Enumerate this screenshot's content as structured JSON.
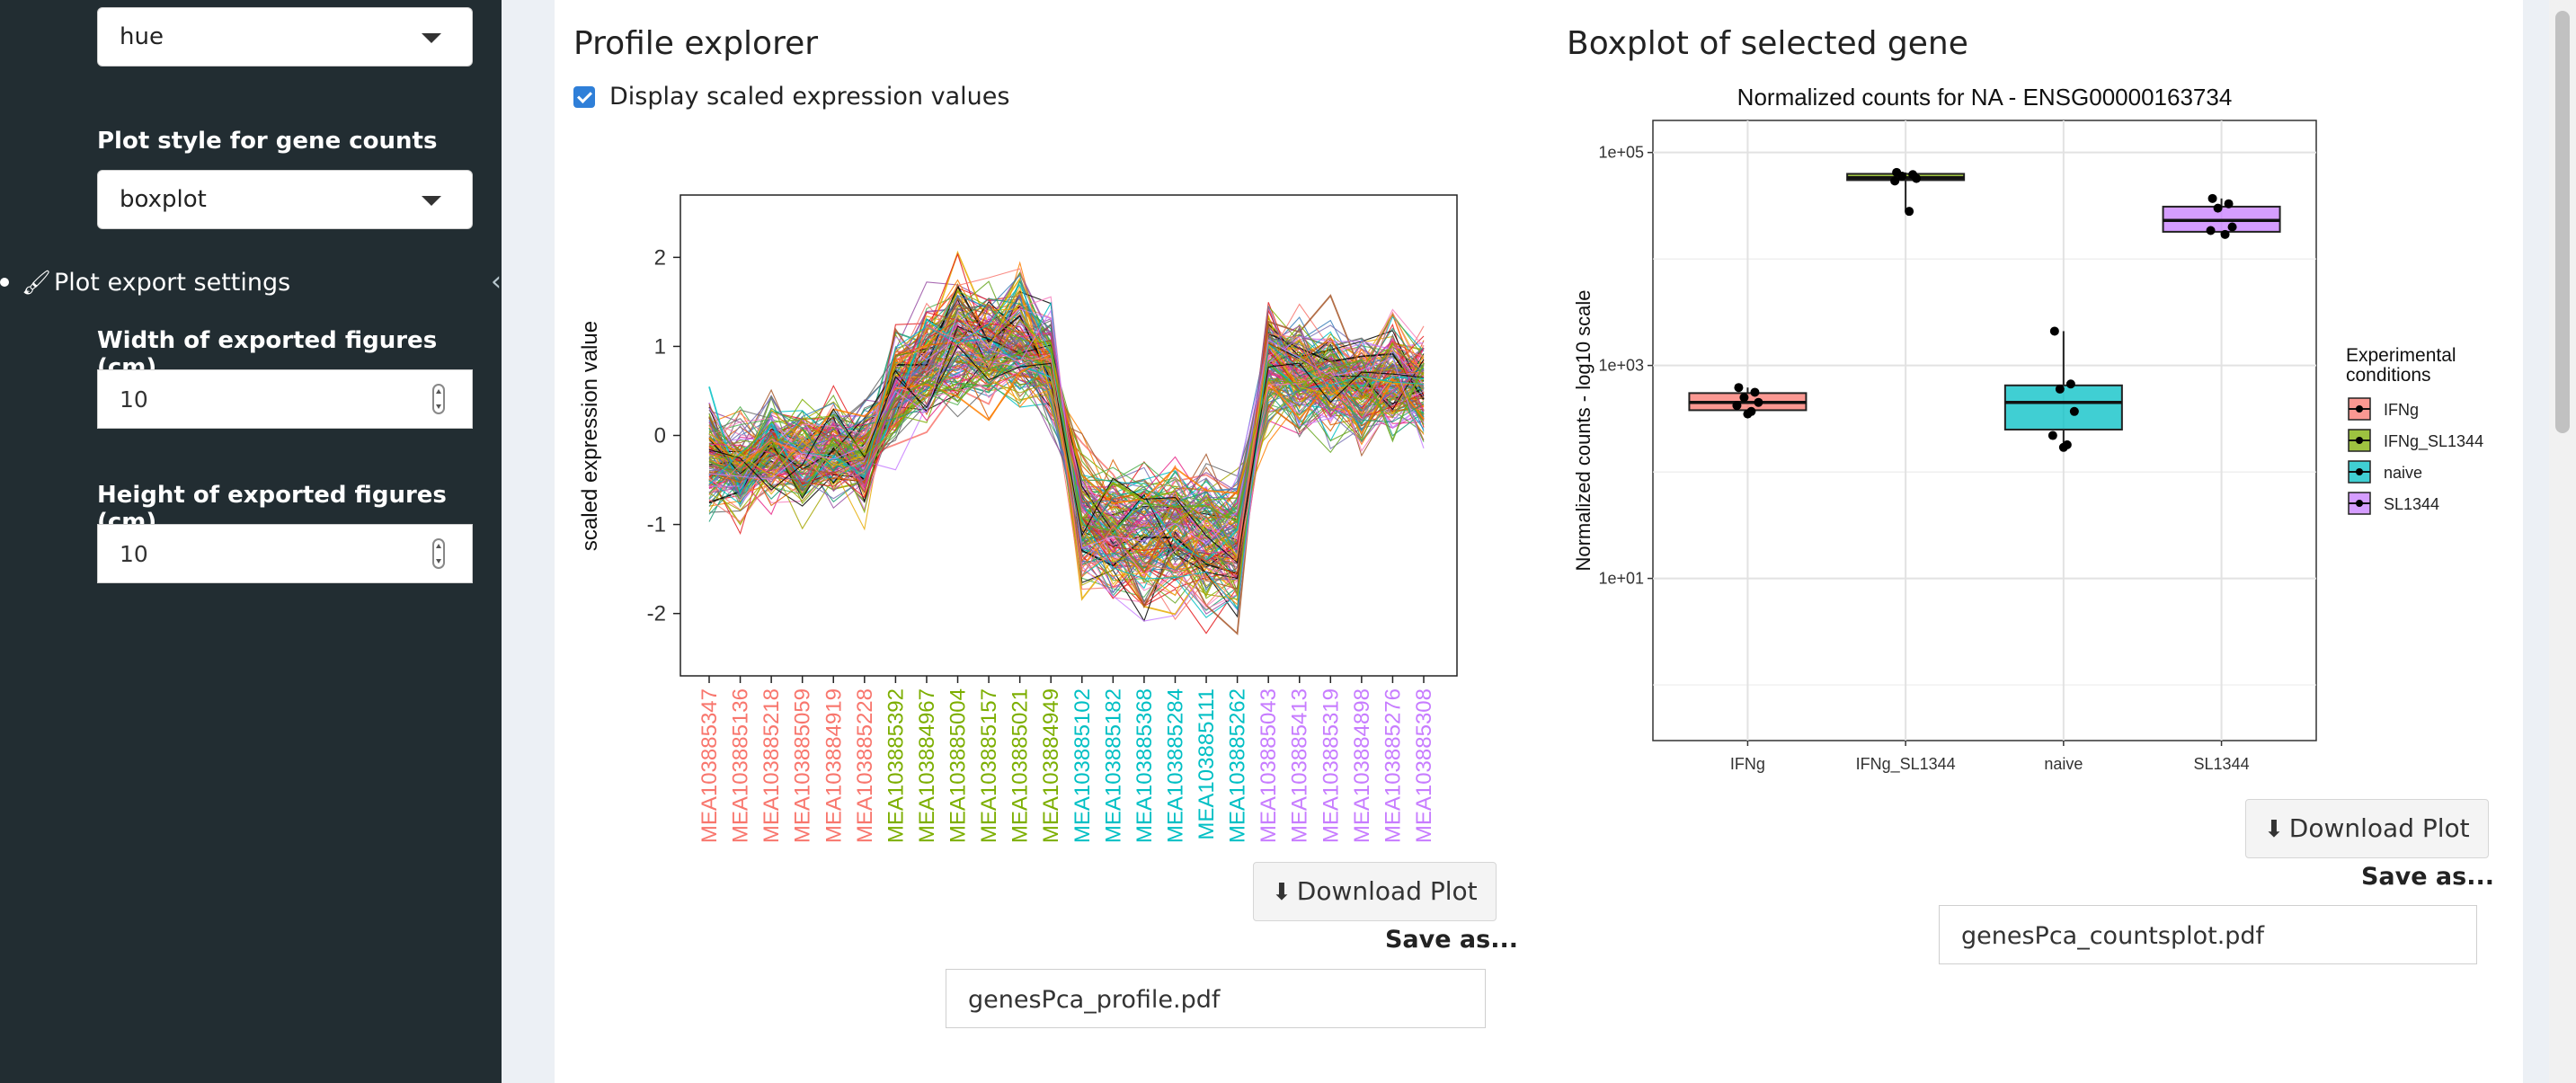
{
  "sidebar": {
    "color_select_value": "hue",
    "plot_style_label": "Plot style for gene counts",
    "plot_style_value": "boxplot",
    "export_section_title": "Plot export settings",
    "width_label": "Width of exported figures (cm)",
    "width_value": "10",
    "height_label": "Height of exported figures (cm)",
    "height_value": "10"
  },
  "profile": {
    "title": "Profile explorer",
    "checkbox_label": "Display scaled expression values",
    "checkbox_checked": true,
    "download_label": "Download Plot",
    "save_as_label": "Save as...",
    "filename": "genesPca_profile.pdf"
  },
  "boxplot": {
    "title": "Boxplot of selected gene",
    "download_label": "Download Plot",
    "save_as_label": "Save as...",
    "filename": "genesPca_countsplot.pdf"
  },
  "colors": {
    "IFNg": "#f8766d",
    "IFNg_SL1344": "#7cae00",
    "naive": "#00bfc4",
    "SL1344": "#c77cff",
    "checkbox": "#2f7fd8",
    "sidebar": "#222d32"
  },
  "chart_data": [
    {
      "type": "line",
      "title": "",
      "xlabel": "",
      "ylabel": "scaled expression value",
      "ylim": [
        -2.7,
        2.7
      ],
      "yticks": [
        -2,
        -1,
        0,
        1,
        2
      ],
      "grid": false,
      "legend": "none",
      "categories": [
        "MEA103885347",
        "MEA103885136",
        "MEA103885218",
        "MEA103885059",
        "MEA103884919",
        "MEA103885228",
        "MEA103885392",
        "MEA103884967",
        "MEA103885004",
        "MEA103885157",
        "MEA103885021",
        "MEA103884949",
        "MEA103885102",
        "MEA103885182",
        "MEA103885368",
        "MEA103885284",
        "MEA103885111",
        "MEA103885262",
        "MEA103885043",
        "MEA103885413",
        "MEA103885319",
        "MEA103884898",
        "MEA103885276",
        "MEA103885308"
      ],
      "category_groups": [
        "IFNg",
        "IFNg",
        "IFNg",
        "IFNg",
        "IFNg",
        "IFNg",
        "IFNg_SL1344",
        "IFNg_SL1344",
        "IFNg_SL1344",
        "IFNg_SL1344",
        "IFNg_SL1344",
        "IFNg_SL1344",
        "naive",
        "naive",
        "naive",
        "naive",
        "naive",
        "naive",
        "SL1344",
        "SL1344",
        "SL1344",
        "SL1344",
        "SL1344",
        "SL1344"
      ],
      "profile_mean": [
        -0.3,
        -0.4,
        -0.2,
        -0.3,
        -0.2,
        -0.3,
        0.6,
        0.9,
        1.2,
        1.1,
        1.2,
        0.9,
        -1.1,
        -1.2,
        -1.3,
        -1.2,
        -1.3,
        -1.4,
        0.9,
        0.8,
        0.7,
        0.6,
        0.7,
        0.6
      ],
      "n_genes_approx": 160
    },
    {
      "type": "box",
      "title": "Normalized counts for NA - ENSG00000163734",
      "xlabel": "",
      "ylabel": "Normalized counts - log10 scale",
      "yscale": "log10",
      "ylim": [
        0.3,
        200000
      ],
      "yticks": [
        "1e+01",
        "1e+03",
        "1e+05"
      ],
      "grid": true,
      "legend": "right",
      "legend_title": "Experimental conditions",
      "categories": [
        "IFNg",
        "IFNg_SL1344",
        "naive",
        "SL1344"
      ],
      "boxes": [
        {
          "name": "IFNg",
          "min": 350,
          "q1": 380,
          "median": 450,
          "q3": 550,
          "max": 620
        },
        {
          "name": "IFNg_SL1344",
          "min": 28000,
          "q1": 55000,
          "median": 58000,
          "q3": 63000,
          "max": 65000
        },
        {
          "name": "naive",
          "min": 170,
          "q1": 250,
          "median": 450,
          "q3": 650,
          "max": 2100
        },
        {
          "name": "SL1344",
          "min": 17000,
          "q1": 18000,
          "median": 23000,
          "q3": 31000,
          "max": 37000
        }
      ],
      "points": [
        {
          "group": "IFNg",
          "values": [
            620,
            560,
            500,
            450,
            420,
            370,
            350
          ]
        },
        {
          "group": "IFNg_SL1344",
          "values": [
            65000,
            62000,
            60000,
            57000,
            54000,
            28000
          ]
        },
        {
          "group": "naive",
          "values": [
            2100,
            670,
            600,
            370,
            220,
            180,
            170
          ]
        },
        {
          "group": "SL1344",
          "values": [
            37000,
            33000,
            30000,
            20000,
            18500,
            17000
          ]
        }
      ]
    }
  ]
}
